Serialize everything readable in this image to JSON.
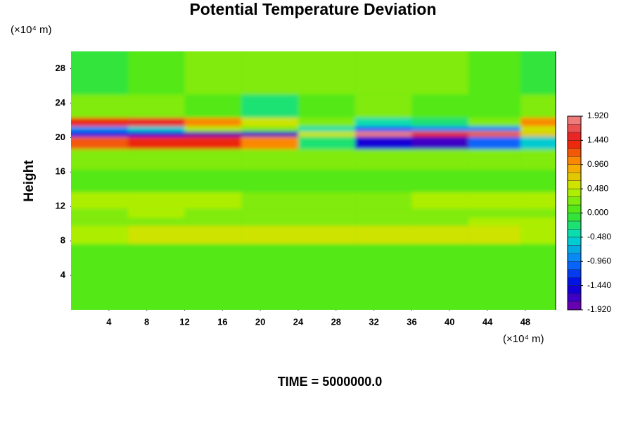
{
  "chart_data": {
    "type": "heatmap",
    "title": "Potential Temperature Deviation",
    "y_label": "Height",
    "y_unit": "(×10⁴ m)",
    "x_unit": "(×10⁴ m)",
    "footer": "TIME = 5000000.0",
    "xlim": [
      0,
      51.2
    ],
    "ylim": [
      0,
      30
    ],
    "xticks": [
      4,
      8,
      12,
      16,
      20,
      24,
      28,
      32,
      36,
      40,
      44,
      48
    ],
    "yticks": [
      4,
      8,
      12,
      16,
      20,
      24,
      28
    ],
    "x": [
      3,
      9,
      15,
      21,
      27,
      33,
      39,
      45,
      50
    ],
    "y": [
      2,
      6,
      9.3,
      10.2,
      11.2,
      12.3,
      15,
      17.5,
      19.8,
      20.4,
      21,
      21.6,
      23,
      27
    ],
    "z": [
      [
        0,
        0,
        0,
        0,
        0,
        0,
        0,
        0,
        0
      ],
      [
        0,
        0,
        0,
        0,
        0,
        0,
        0,
        0,
        0
      ],
      [
        0.4,
        0.5,
        0.5,
        0.5,
        0.5,
        0.5,
        0.6,
        0.5,
        0.4
      ],
      [
        0.2,
        0.3,
        0.3,
        0.2,
        0.2,
        0.3,
        0.3,
        0.4,
        0.4
      ],
      [
        0.3,
        0.4,
        0.3,
        0.3,
        0.3,
        0.3,
        0.3,
        0.3,
        0.3
      ],
      [
        0.4,
        0.4,
        0.4,
        0.3,
        0.3,
        0.3,
        0.4,
        0.4,
        0.4
      ],
      [
        0.1,
        0,
        0.1,
        0,
        0,
        0.1,
        0,
        0.1,
        0
      ],
      [
        0.2,
        0.2,
        0.2,
        0.2,
        0.2,
        0.2,
        0.2,
        0.2,
        0.2
      ],
      [
        1.2,
        1.4,
        1.3,
        1.0,
        -0.3,
        -1.5,
        -1.6,
        -1.0,
        -0.6
      ],
      [
        -1.4,
        -1.5,
        -1.9,
        -1.7,
        0.6,
        1.9,
        1.4,
        1.2,
        0.8
      ],
      [
        -0.8,
        -0.6,
        0.4,
        0.3,
        -0.4,
        -1.0,
        -0.9,
        -0.8,
        0.6
      ],
      [
        1.4,
        1.5,
        1.0,
        0.6,
        0.2,
        -0.4,
        -0.3,
        0.3,
        1.0
      ],
      [
        0.3,
        0.2,
        0,
        -0.3,
        0,
        0.2,
        0.1,
        0.1,
        0.2
      ],
      [
        -0.1,
        0,
        0.2,
        0.2,
        0.3,
        0.3,
        0.2,
        0.1,
        -0.1
      ]
    ],
    "zlim": [
      -1.92,
      1.92
    ],
    "zstep": 0.16,
    "colors": [
      "#7a00a8",
      "#0000e0",
      "#0a78ff",
      "#00dcc8",
      "#3ce61e",
      "#c4f000",
      "#ffa000",
      "#e81010",
      "#f29090"
    ],
    "zticks": [
      {
        "value": -1.92,
        "label": "-1.920"
      },
      {
        "value": -1.44,
        "label": "-1.440"
      },
      {
        "value": -0.96,
        "label": "-0.960"
      },
      {
        "value": -0.48,
        "label": "-0.480"
      },
      {
        "value": 0,
        "label": "0.000"
      },
      {
        "value": 0.48,
        "label": "0.480"
      },
      {
        "value": 0.96,
        "label": "0.960"
      },
      {
        "value": 1.44,
        "label": "1.440"
      },
      {
        "value": 1.92,
        "label": "1.920"
      }
    ]
  }
}
